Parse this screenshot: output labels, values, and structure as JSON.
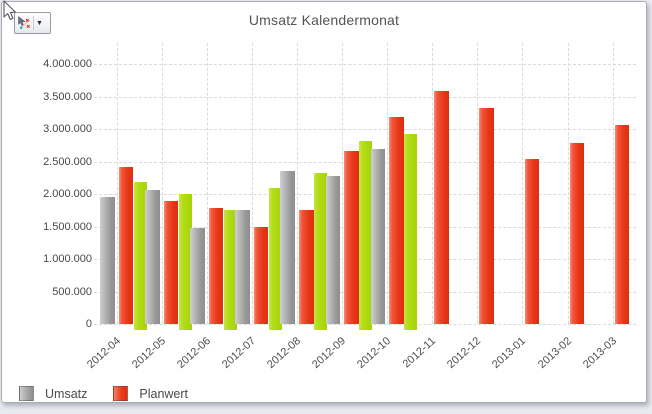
{
  "toolbar": {
    "chart_button": {
      "caret": "▼"
    }
  },
  "chart": {
    "title": "Umsatz Kalendermonat"
  },
  "chart_data": {
    "type": "bar",
    "title": "Umsatz Kalendermonat",
    "categories": [
      "2012-04",
      "2012-05",
      "2012-06",
      "2012-07",
      "2012-08",
      "2012-09",
      "2012-10",
      "2012-11",
      "2012-12",
      "2013-01",
      "2013-02",
      "2013-03"
    ],
    "series": [
      {
        "name": "Umsatz",
        "color": "#9b9b9b",
        "in_legend": true,
        "values": [
          1950000,
          2060000,
          1470000,
          1750000,
          2350000,
          2280000,
          2700000,
          null,
          null,
          null,
          null,
          null
        ]
      },
      {
        "name": "Planwert",
        "color": "#e8391d",
        "in_legend": true,
        "values": [
          2420000,
          1890000,
          1780000,
          1500000,
          1760000,
          2660000,
          3180000,
          3580000,
          3320000,
          2540000,
          2790000,
          3060000
        ]
      },
      {
        "name": "",
        "color": "#a9d70f",
        "in_legend": false,
        "values": [
          2180000,
          2000000,
          1760000,
          2090000,
          2320000,
          2810000,
          2920000,
          null,
          null,
          null,
          null,
          null
        ]
      }
    ],
    "ylim": [
      0,
      4000000
    ],
    "y_ticks": [
      0,
      500000,
      1000000,
      1500000,
      2000000,
      2500000,
      3000000,
      3500000,
      4000000
    ],
    "y_tick_labels": [
      "0",
      "500.000",
      "1.000.000",
      "1.500.000",
      "2.000.000",
      "2.500.000",
      "3.000.000",
      "3.500.000",
      "4.000.000"
    ],
    "grid": "dashed",
    "legend": {
      "position": "bottom-left",
      "entries": [
        {
          "label": "Umsatz",
          "swatch": "gray"
        },
        {
          "label": "Planwert",
          "swatch": "red"
        }
      ]
    }
  }
}
